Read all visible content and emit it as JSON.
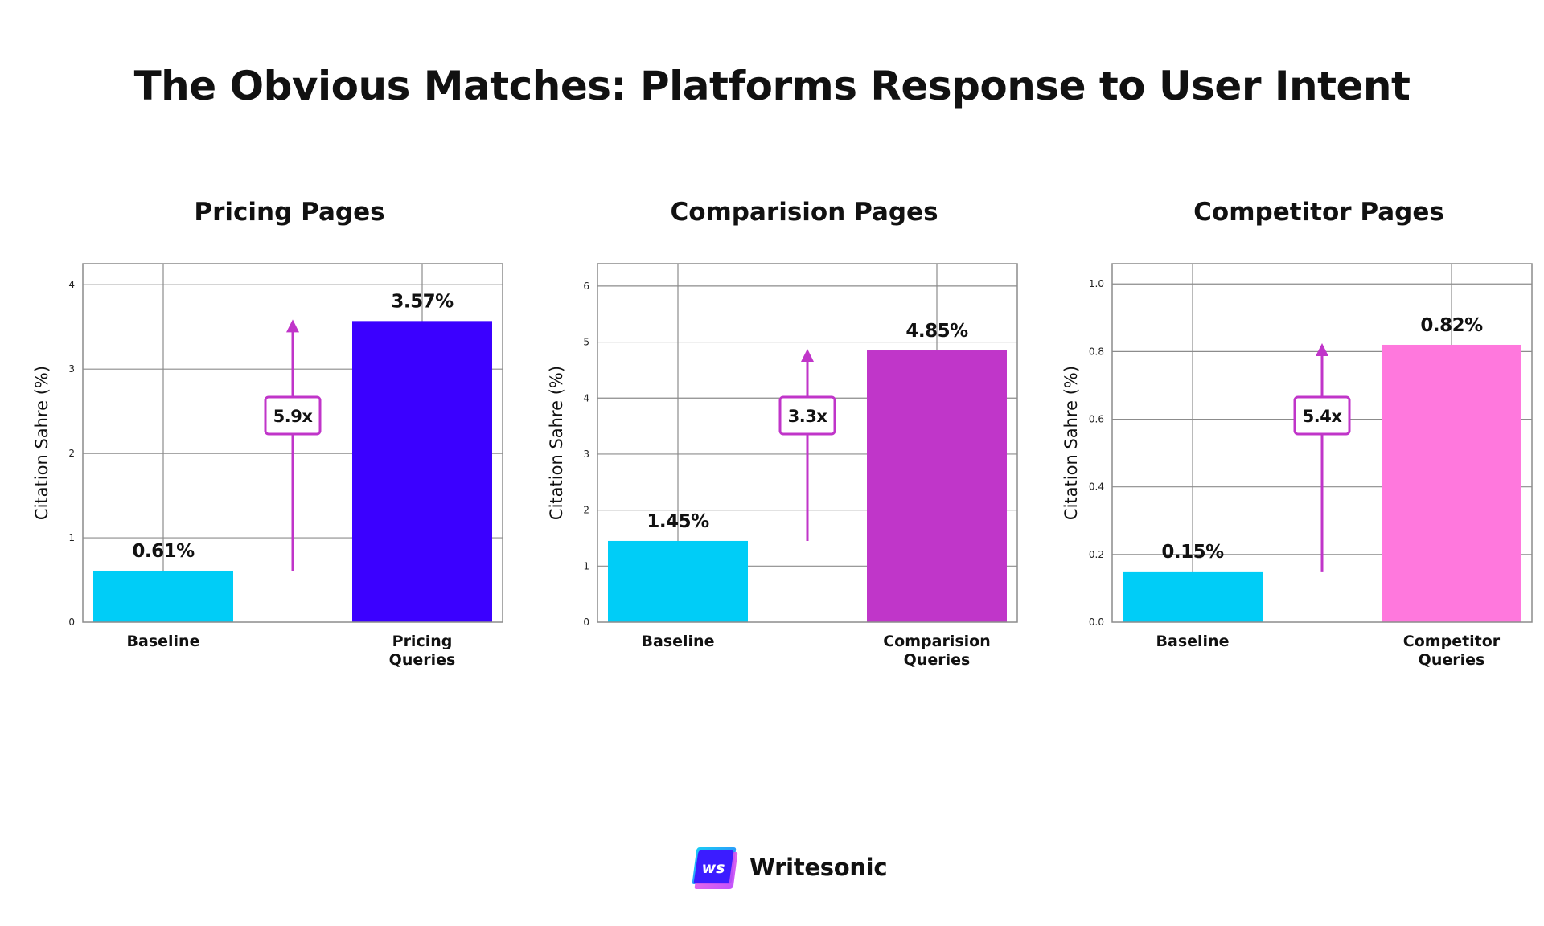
{
  "title": "The Obvious Matches: Platforms Response to User Intent",
  "brand": {
    "logo_text": "ws",
    "name": "Writesonic"
  },
  "colors": {
    "arrow": "#c035c9",
    "grid": "#8c8c8c",
    "frame": "#8c8c8c"
  },
  "chart_data": [
    {
      "type": "bar",
      "title": "Pricing Pages",
      "ylabel": "Citation Sahre (%)",
      "categories": [
        "Baseline",
        "Pricing\nQueries"
      ],
      "values": [
        0.61,
        3.57
      ],
      "value_labels": [
        "0.61%",
        "3.57%"
      ],
      "colors": [
        "#00cdf7",
        "#3b00ff"
      ],
      "ylim": [
        0,
        4.25
      ],
      "yticks": [
        0,
        1,
        2,
        3,
        4
      ],
      "ytick_labels": [
        "0",
        "1",
        "2",
        "3",
        "4"
      ],
      "multiplier": "5.9x",
      "grid": true
    },
    {
      "type": "bar",
      "title": "Comparision Pages",
      "ylabel": "Citation Sahre (%)",
      "categories": [
        "Baseline",
        "Comparision\nQueries"
      ],
      "values": [
        1.45,
        4.85
      ],
      "value_labels": [
        "1.45%",
        "4.85%"
      ],
      "colors": [
        "#00cdf7",
        "#c036c9"
      ],
      "ylim": [
        0,
        6.4
      ],
      "yticks": [
        0,
        1,
        2,
        3,
        4,
        5,
        6
      ],
      "ytick_labels": [
        "0",
        "1",
        "2",
        "3",
        "4",
        "5",
        "6"
      ],
      "multiplier": "3.3x",
      "grid": true
    },
    {
      "type": "bar",
      "title": "Competitor Pages",
      "ylabel": "Citation Sahre (%)",
      "categories": [
        "Baseline",
        "Competitor\nQueries"
      ],
      "values": [
        0.15,
        0.82
      ],
      "value_labels": [
        "0.15%",
        "0.82%"
      ],
      "colors": [
        "#00cdf7",
        "#ff78dd"
      ],
      "ylim": [
        0,
        1.06
      ],
      "yticks": [
        0,
        0.2,
        0.4,
        0.6,
        0.8,
        1.0
      ],
      "ytick_labels": [
        "0.0",
        "0.2",
        "0.4",
        "0.6",
        "0.8",
        "1.0"
      ],
      "multiplier": "5.4x",
      "grid": true
    }
  ]
}
